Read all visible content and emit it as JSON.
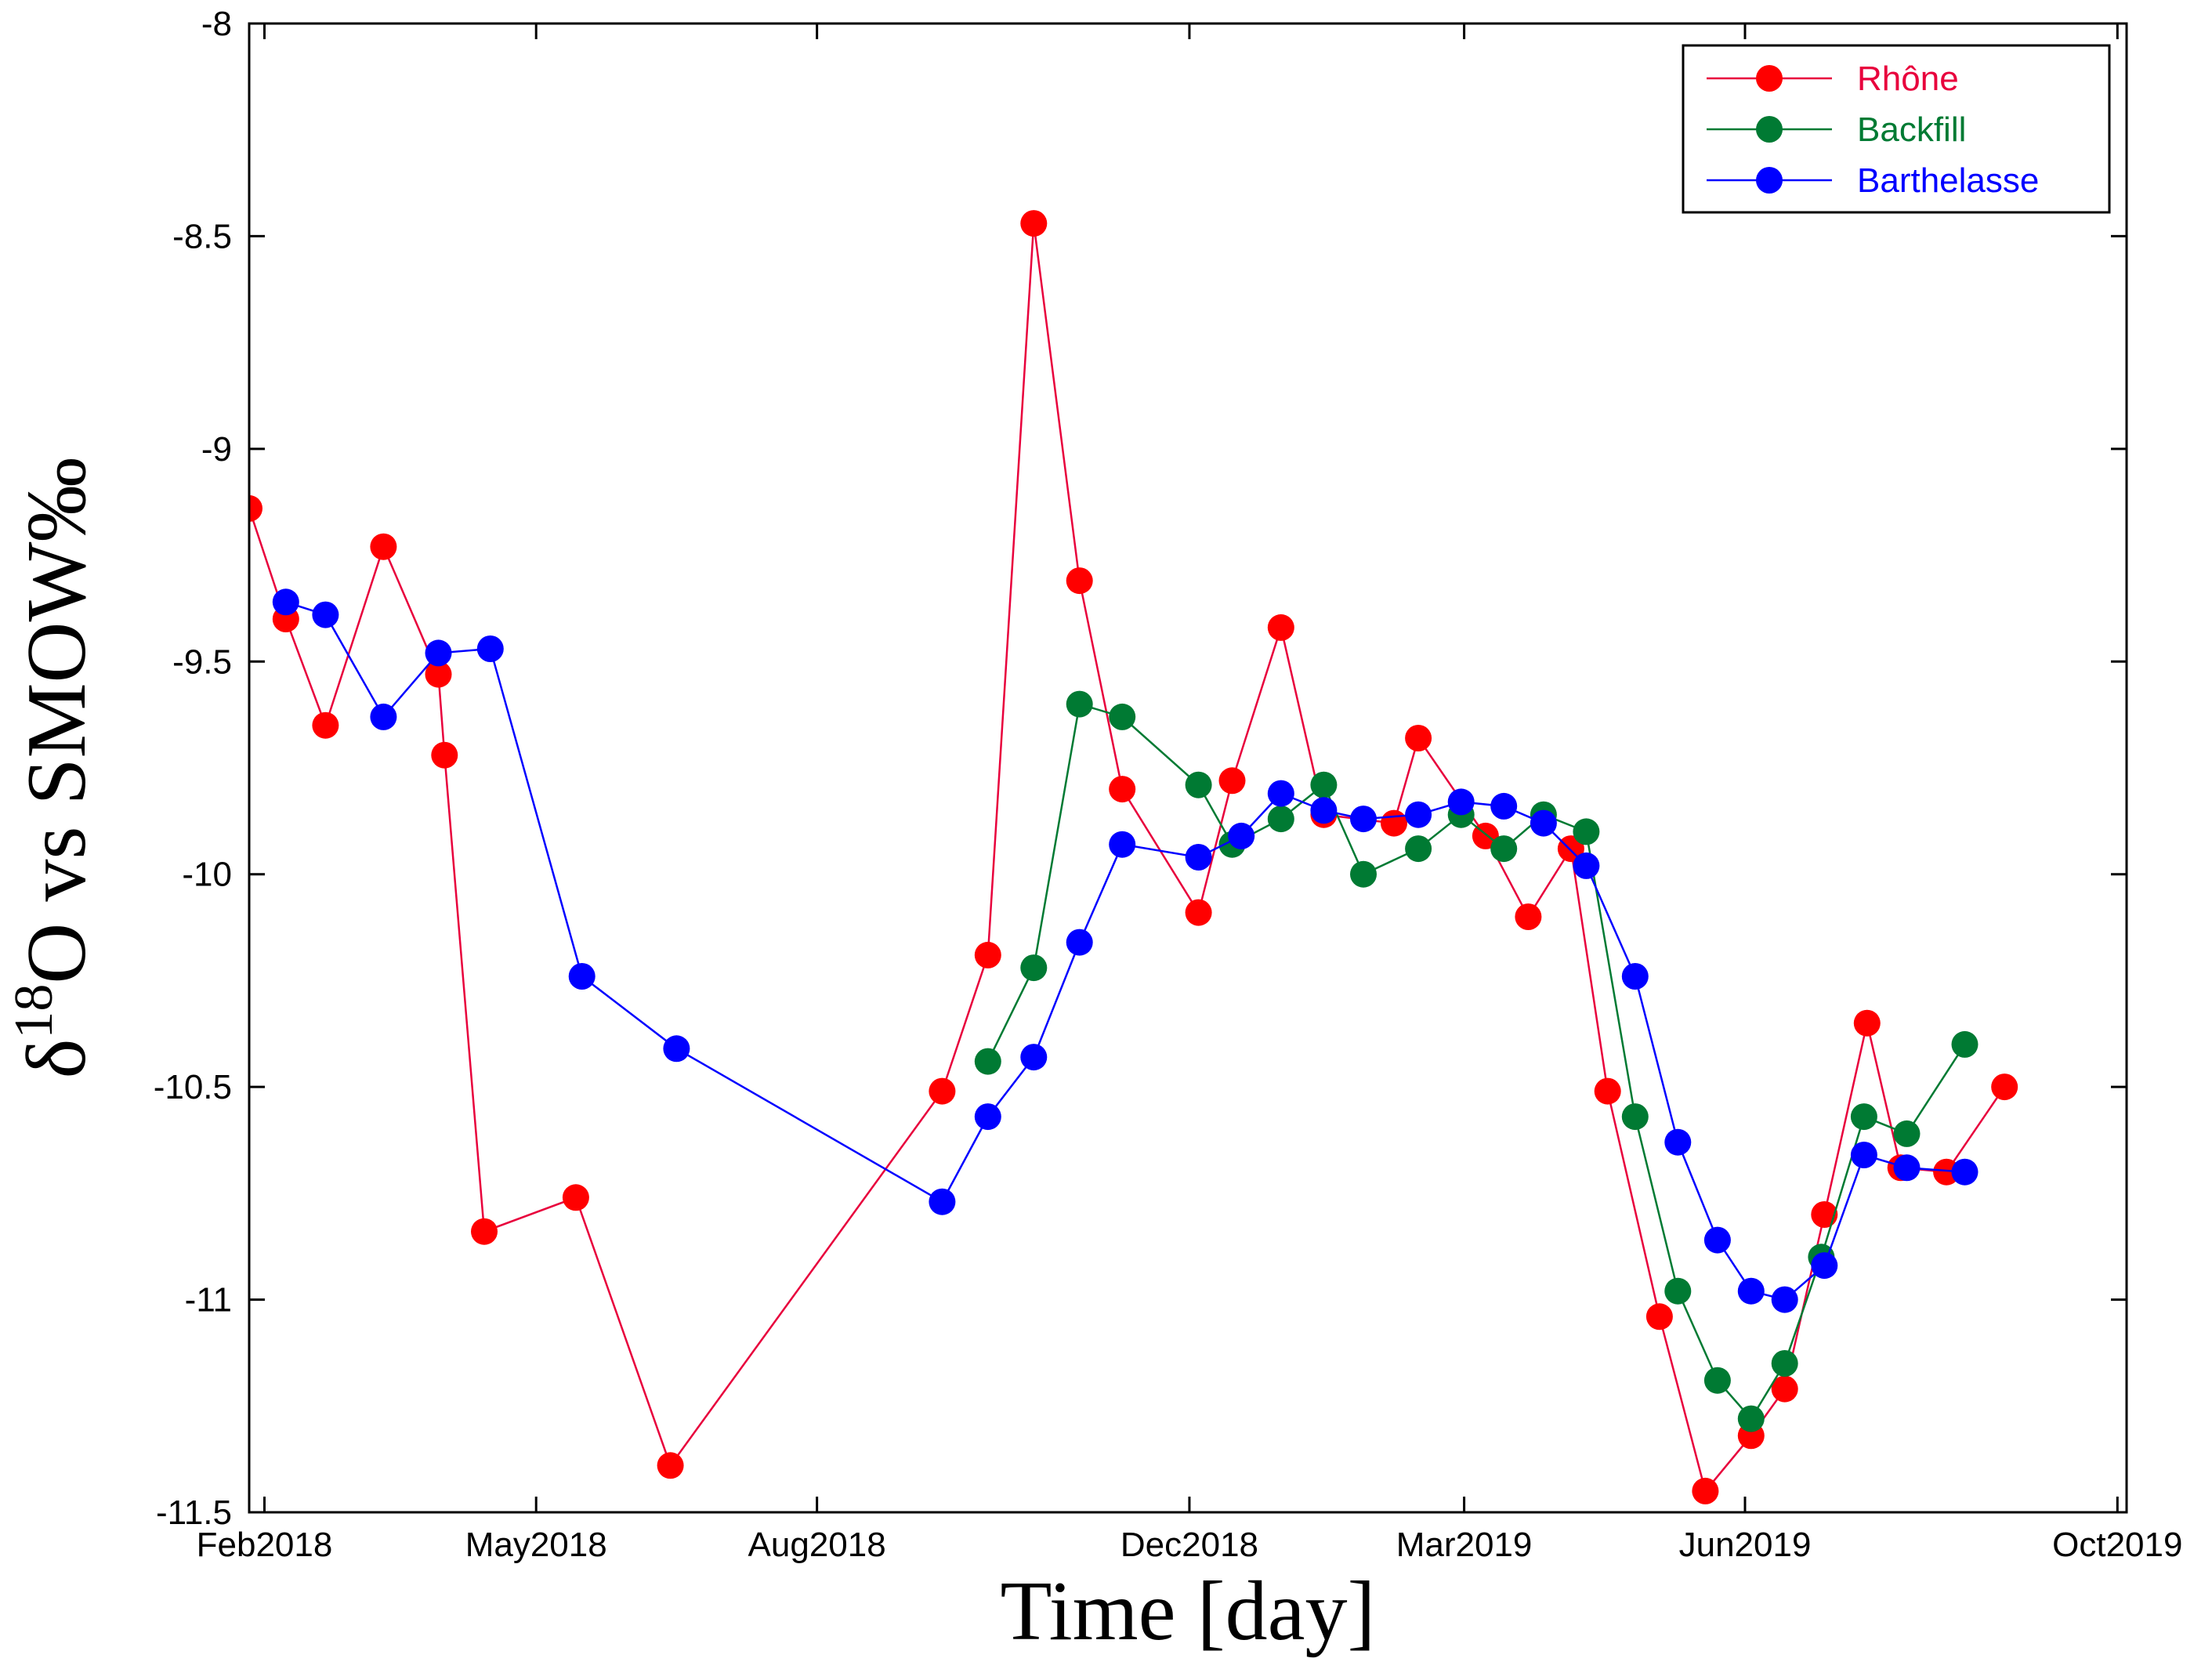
{
  "chart_data": {
    "type": "line",
    "title": "",
    "xlabel": "Time [day]",
    "ylabel": {
      "prefix": "δ",
      "superscript": "18",
      "main": "O vs SMOW‰"
    },
    "ylim": [
      -11.5,
      -8
    ],
    "yticks": [
      -11.5,
      -11,
      -10.5,
      -10,
      -9.5,
      -9,
      -8.5,
      -8
    ],
    "ytick_labels": [
      "-11.5",
      "-11",
      "-10.5",
      "-10",
      "-9.5",
      "-9",
      "-8.5",
      "-8"
    ],
    "x_unit": "days since 2018-01-27",
    "xlim": [
      0,
      615
    ],
    "xticks": [
      {
        "label": "Feb2018",
        "value": 5
      },
      {
        "label": "May2018",
        "value": 94
      },
      {
        "label": "Aug2018",
        "value": 186
      },
      {
        "label": "Dec2018",
        "value": 308
      },
      {
        "label": "Mar2019",
        "value": 398
      },
      {
        "label": "Jun2019",
        "value": 490
      },
      {
        "label": "Oct2019",
        "value": 612
      }
    ],
    "legend_position": "top-right",
    "grid": false,
    "series": [
      {
        "name": "Rhône",
        "color": "#ff0000",
        "line_color": "#e8003c",
        "label_color": "#e8003c",
        "x": [
          0,
          12,
          25,
          44,
          62,
          64,
          77,
          107,
          138,
          227,
          242,
          257,
          272,
          286,
          311,
          322,
          338,
          352,
          375,
          383,
          405,
          419,
          433,
          445,
          462,
          477,
          492,
          503,
          516,
          530,
          541,
          556,
          575
        ],
        "y": [
          -9.14,
          -9.4,
          -9.65,
          -9.23,
          -9.53,
          -9.72,
          -10.84,
          -10.76,
          -11.39,
          -10.51,
          -10.19,
          -8.47,
          -9.31,
          -9.8,
          -10.09,
          -9.78,
          -9.42,
          -9.86,
          -9.88,
          -9.68,
          -9.91,
          -10.1,
          -9.94,
          -10.51,
          -11.04,
          -11.45,
          -11.32,
          -11.21,
          -10.8,
          -10.35,
          -10.69,
          -10.7,
          -10.5
        ]
      },
      {
        "name": "Backfill",
        "color": "#007a33",
        "line_color": "#007a33",
        "label_color": "#007a33",
        "x": [
          242,
          257,
          272,
          286,
          311,
          322,
          338,
          352,
          365,
          383,
          397,
          411,
          424,
          438,
          454,
          468,
          481,
          492,
          503,
          515,
          529,
          543,
          562
        ],
        "y": [
          -10.44,
          -10.22,
          -9.6,
          -9.63,
          -9.79,
          -9.93,
          -9.87,
          -9.79,
          -10.0,
          -9.94,
          -9.86,
          -9.94,
          -9.86,
          -9.9,
          -10.57,
          -10.98,
          -11.19,
          -11.28,
          -11.15,
          -10.9,
          -10.57,
          -10.61,
          -10.4
        ]
      },
      {
        "name": "Barthelasse",
        "color": "#0000ff",
        "line_color": "#0000ff",
        "label_color": "#0000ff",
        "x": [
          12,
          25,
          44,
          62,
          79,
          109,
          140,
          227,
          242,
          257,
          272,
          286,
          311,
          325,
          338,
          352,
          365,
          383,
          397,
          411,
          424,
          438,
          454,
          468,
          481,
          492,
          503,
          516,
          529,
          543,
          562
        ],
        "y": [
          -9.36,
          -9.39,
          -9.63,
          -9.48,
          -9.47,
          -10.24,
          -10.41,
          -10.77,
          -10.57,
          -10.43,
          -10.16,
          -9.93,
          -9.96,
          -9.91,
          -9.81,
          -9.85,
          -9.87,
          -9.86,
          -9.83,
          -9.84,
          -9.88,
          -9.98,
          -10.24,
          -10.63,
          -10.86,
          -10.98,
          -11.0,
          -10.92,
          -10.66,
          -10.69,
          -10.7
        ]
      }
    ]
  }
}
